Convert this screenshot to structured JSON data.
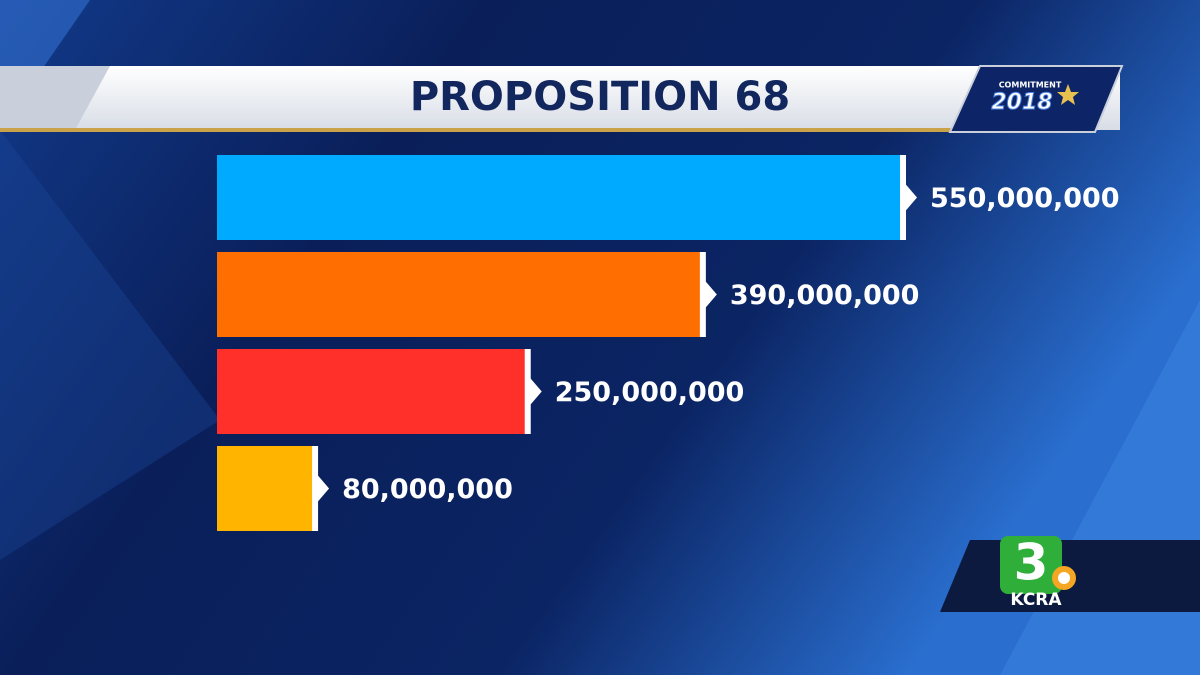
{
  "chart_data": {
    "type": "bar",
    "orientation": "horizontal",
    "title": "PROPOSITION 68",
    "values": [
      550000000,
      390000000,
      250000000,
      80000000
    ],
    "value_labels": [
      "550,000,000",
      "390,000,000",
      "250,000,000",
      "80,000,000"
    ],
    "colors": [
      "#00aaff",
      "#ff6e00",
      "#ff2f2a",
      "#ffb400"
    ]
  },
  "event_logo": {
    "caption": "COMMITMENT",
    "year": "2018"
  },
  "station_logo": {
    "number": "3",
    "call_sign": "KCRA"
  }
}
